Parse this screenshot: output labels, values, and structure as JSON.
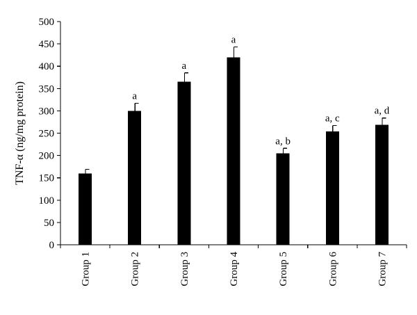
{
  "chart_data": {
    "type": "bar",
    "title": "",
    "xlabel": "",
    "ylabel": "TNF-α (ng/mg protein)",
    "ylim": [
      0,
      500
    ],
    "yticks": [
      0,
      50,
      100,
      150,
      200,
      250,
      300,
      350,
      400,
      450,
      500
    ],
    "categories": [
      "Group 1",
      "Group 2",
      "Group 3",
      "Group 4",
      "Group 5",
      "Group 6",
      "Group 7"
    ],
    "values": [
      160,
      300,
      365,
      420,
      205,
      254,
      269
    ],
    "errors": [
      9,
      17,
      20,
      23,
      11,
      13,
      15
    ],
    "annotations": [
      "",
      "a",
      "a",
      "a",
      "a, b",
      "a, c",
      "a, d"
    ],
    "legend": "none",
    "grid": false
  }
}
